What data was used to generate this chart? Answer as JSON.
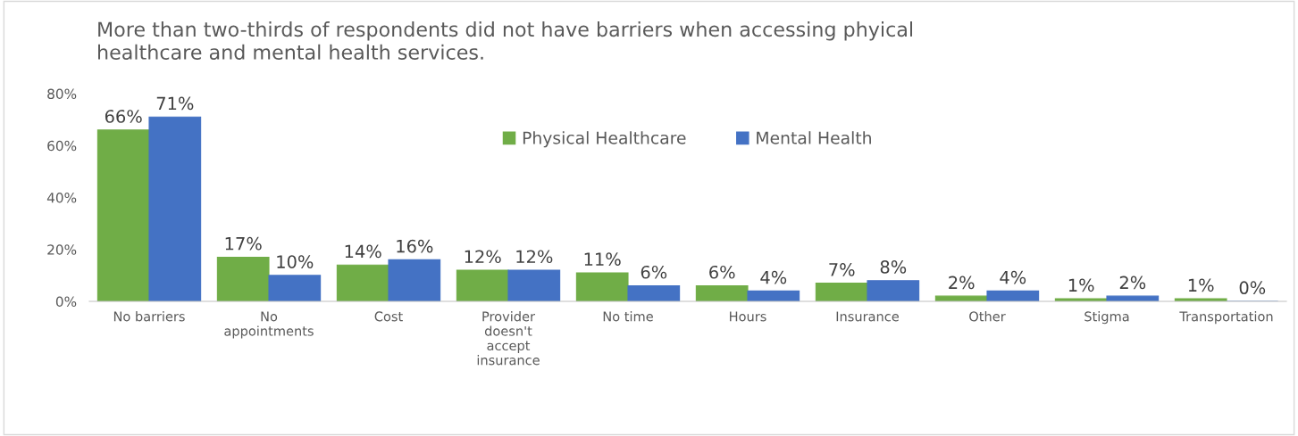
{
  "chart_data": {
    "type": "bar",
    "title": "More than two-thirds of respondents did not have barriers when accessing phyical\nhealthcare and mental health services.",
    "categories": [
      "No barriers",
      "No\nappointments",
      "Cost",
      "Provider\ndoesn't\naccept\ninsurance",
      "No time",
      "Hours",
      "Insurance",
      "Other",
      "Stigma",
      "Transportation"
    ],
    "series": [
      {
        "name": "Physical Healthcare",
        "color": "#70ad47",
        "values": [
          66,
          17,
          14,
          12,
          11,
          6,
          7,
          2,
          1,
          1
        ],
        "value_labels": [
          "66%",
          "17%",
          "14%",
          "12%",
          "11%",
          "6%",
          "7%",
          "2%",
          "1%",
          "1%"
        ]
      },
      {
        "name": "Mental Health",
        "color": "#4472c4",
        "values": [
          71,
          10,
          16,
          12,
          6,
          4,
          8,
          4,
          2,
          0
        ],
        "value_labels": [
          "71%",
          "10%",
          "16%",
          "12%",
          "6%",
          "4%",
          "8%",
          "4%",
          "2%",
          "0%"
        ]
      }
    ],
    "ylim": [
      0,
      80
    ],
    "yticks": [
      {
        "value": 0,
        "label": "0%"
      },
      {
        "value": 20,
        "label": "20%"
      },
      {
        "value": 40,
        "label": "40%"
      },
      {
        "value": 60,
        "label": "60%"
      },
      {
        "value": 80,
        "label": "80%"
      }
    ],
    "grid": false,
    "legend": "top"
  }
}
